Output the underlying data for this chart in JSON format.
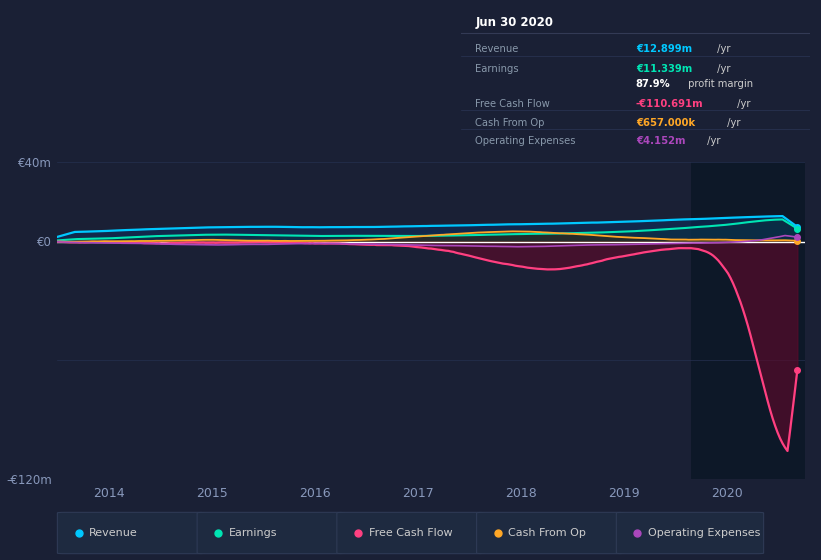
{
  "bg_color": "#1a2035",
  "chart_bg": "#1a2035",
  "panel_bg": "#0d1525",
  "title": "Jun 30 2020",
  "info_box": {
    "title": "Jun 30 2020",
    "rows": [
      {
        "label": "Revenue",
        "value": "€12.899m",
        "suffix": " /yr",
        "value_color": "#00c8ff"
      },
      {
        "label": "Earnings",
        "value": "€11.339m",
        "suffix": " /yr",
        "value_color": "#00e5b4"
      },
      {
        "label": "",
        "value": "87.9%",
        "suffix": " profit margin",
        "value_color": "#ffffff"
      },
      {
        "label": "Free Cash Flow",
        "value": "-€110.691m",
        "suffix": " /yr",
        "value_color": "#ff4081"
      },
      {
        "label": "Cash From Op",
        "value": "€657.000k",
        "suffix": " /yr",
        "value_color": "#ffa726"
      },
      {
        "label": "Operating Expenses",
        "value": "€4.152m",
        "suffix": " /yr",
        "value_color": "#ab47bc"
      }
    ]
  },
  "ylim": [
    -120,
    40
  ],
  "yticks": [
    -120,
    0,
    40
  ],
  "ytick_labels": [
    "-€120m",
    "€0",
    "€40m"
  ],
  "xlim_start": 2013.5,
  "xlim_end": 2020.75,
  "xticks": [
    2014,
    2015,
    2016,
    2017,
    2018,
    2019,
    2020
  ],
  "highlight_x_start": 2019.65,
  "highlight_x_end": 2020.75,
  "series": {
    "revenue": {
      "color": "#00c8ff",
      "fill_color": "#0a3060",
      "label": "Revenue"
    },
    "earnings": {
      "color": "#00e5b4",
      "fill_color": "#0a3545",
      "label": "Earnings"
    },
    "free_cash_flow": {
      "color": "#ff4081",
      "fill_color": "#5c0a2a",
      "label": "Free Cash Flow"
    },
    "cash_from_op": {
      "color": "#ffa726",
      "fill_color": "#4a2a00",
      "label": "Cash From Op"
    },
    "operating_expenses": {
      "color": "#ab47bc",
      "fill_color": "#2a0a3c",
      "label": "Operating Expenses"
    }
  },
  "legend_items": [
    {
      "label": "Revenue",
      "color": "#00c8ff"
    },
    {
      "label": "Earnings",
      "color": "#00e5b4"
    },
    {
      "label": "Free Cash Flow",
      "color": "#ff4081"
    },
    {
      "label": "Cash From Op",
      "color": "#ffa726"
    },
    {
      "label": "Operating Expenses",
      "color": "#ab47bc"
    }
  ]
}
